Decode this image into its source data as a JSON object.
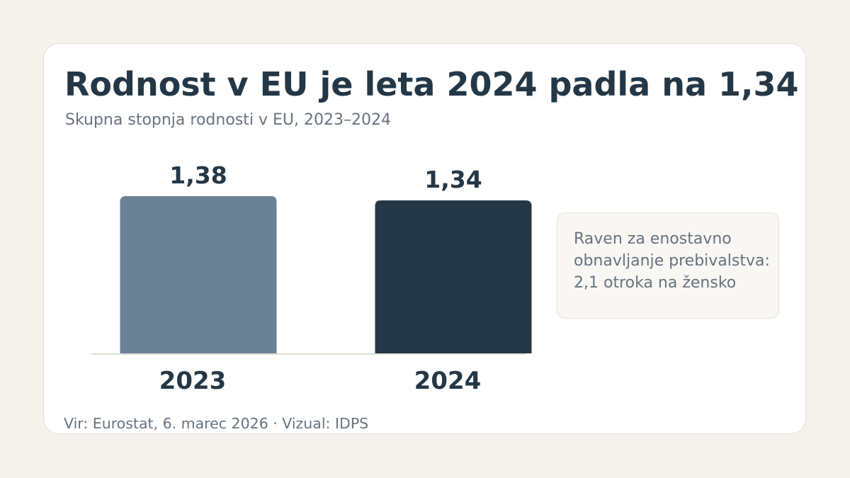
{
  "title": "Rodnost v EU je leta 2024 padla na 1,34",
  "subtitle": "Skupna stopnja rodnosti v EU, 2023–2024",
  "note": {
    "lines": [
      "Raven za enostavno",
      "obnavljanje prebivalstva:",
      "2,1 otroka na žensko"
    ]
  },
  "source": "Vir: Eurostat, 6. marec 2026 · Vizual: IDPS",
  "colors": {
    "bar_2023": "#6b8195",
    "bar_2024": "#243746",
    "text_dark": "#243746",
    "text_muted": "#66737f",
    "baseline": "#e0ddd2"
  },
  "chart_data": {
    "type": "bar",
    "categories": [
      "2023",
      "2024"
    ],
    "values": [
      1.38,
      1.34
    ],
    "value_labels": [
      "1,38",
      "1,34"
    ],
    "title": "Rodnost v EU je leta 2024 padla na 1,34",
    "subtitle": "Skupna stopnja rodnosti v EU, 2023–2024",
    "xlabel": "",
    "ylabel": "",
    "grid": false,
    "legend": "none"
  }
}
